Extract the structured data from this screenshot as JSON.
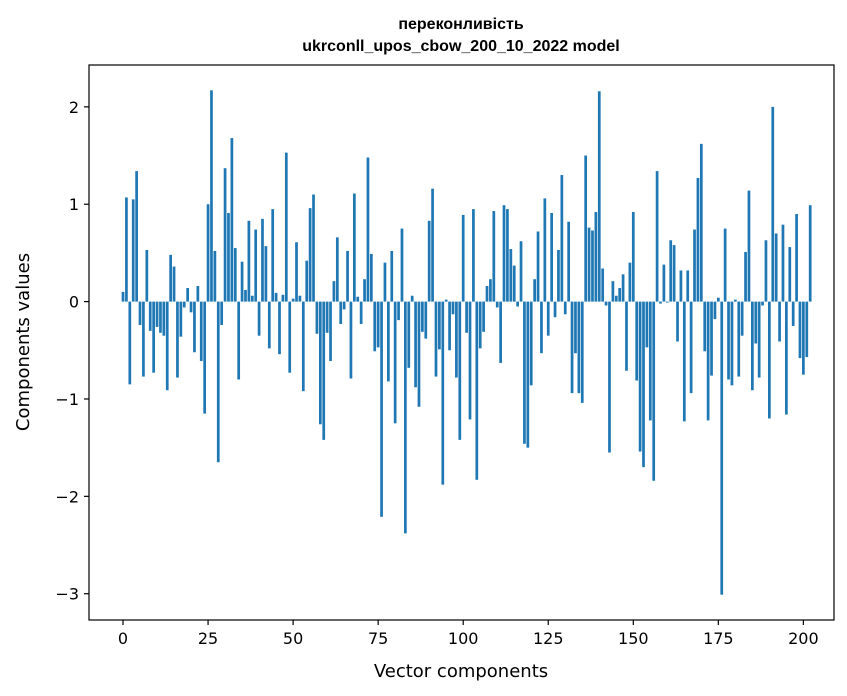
{
  "chart_data": {
    "type": "bar",
    "title": "переконливість",
    "subtitle": "ukrconll_upos_cbow_200_10_2022 model",
    "xlabel": "Vector components",
    "ylabel": "Components values",
    "xlim": [
      -10,
      209
    ],
    "ylim": [
      -3.27,
      2.43
    ],
    "xticks": [
      0,
      25,
      50,
      75,
      100,
      125,
      150,
      175,
      200
    ],
    "yticks": [
      -3,
      -2,
      -1,
      0,
      1,
      2
    ],
    "ytick_labels": [
      "−3",
      "−2",
      "−1",
      "0",
      "1",
      "2"
    ],
    "bar_color": "#1f77b4",
    "grid": false,
    "legend": "none",
    "values": [
      0.1,
      1.07,
      -0.85,
      1.05,
      1.34,
      -0.24,
      -0.77,
      0.53,
      -0.3,
      -0.73,
      -0.26,
      -0.32,
      -0.35,
      -0.91,
      0.48,
      0.36,
      -0.78,
      -0.36,
      -0.06,
      0.14,
      -0.11,
      -0.52,
      0.16,
      -0.61,
      -1.15,
      1.0,
      2.17,
      0.52,
      -1.65,
      -0.24,
      1.37,
      0.91,
      1.68,
      0.55,
      -0.8,
      0.41,
      0.12,
      0.83,
      0.06,
      0.74,
      -0.35,
      0.85,
      0.57,
      -0.48,
      0.95,
      0.09,
      -0.54,
      0.07,
      1.53,
      -0.73,
      0.03,
      0.61,
      0.06,
      -0.92,
      0.42,
      0.96,
      1.1,
      -0.33,
      -1.26,
      -1.42,
      -0.32,
      -0.61,
      0.21,
      0.66,
      -0.23,
      -0.08,
      0.52,
      -0.79,
      1.11,
      0.05,
      -0.23,
      0.23,
      1.48,
      0.49,
      -0.51,
      -0.47,
      -2.21,
      0.4,
      -0.82,
      0.52,
      -1.25,
      -0.19,
      0.75,
      -2.38,
      -0.68,
      0.06,
      -0.88,
      -1.08,
      -0.31,
      -0.38,
      0.83,
      1.16,
      -0.77,
      -0.49,
      -1.88,
      0.02,
      -0.5,
      -0.13,
      -0.78,
      -1.42,
      0.89,
      -0.32,
      -1.21,
      0.95,
      -1.83,
      -0.48,
      -0.31,
      0.16,
      0.23,
      0.93,
      -0.06,
      -0.63,
      0.99,
      0.95,
      0.54,
      0.37,
      -0.05,
      0.62,
      -1.46,
      -1.5,
      -0.86,
      0.23,
      0.72,
      -0.53,
      1.06,
      -0.35,
      0.91,
      -0.16,
      0.53,
      1.3,
      -0.13,
      0.82,
      -0.94,
      -0.53,
      -0.94,
      -1.04,
      1.5,
      0.76,
      0.73,
      0.92,
      2.16,
      0.34,
      -0.04,
      -1.55,
      0.21,
      0.06,
      0.14,
      0.28,
      -0.71,
      0.4,
      0.92,
      -0.81,
      -1.54,
      -1.7,
      -0.47,
      -1.22,
      -1.84,
      1.34,
      -0.02,
      0.38,
      -0.01,
      0.63,
      0.58,
      -0.41,
      0.32,
      -1.23,
      0.32,
      -0.94,
      0.74,
      1.27,
      1.62,
      -0.51,
      -1.22,
      -0.76,
      -0.18,
      0.04,
      -3.01,
      0.75,
      -0.8,
      -0.86,
      0.02,
      -0.77,
      -0.35,
      0.51,
      1.14,
      -0.91,
      -0.43,
      -0.78,
      -0.04,
      0.63,
      -1.2,
      2.0,
      0.7,
      -0.41,
      0.79,
      -1.16,
      0.56,
      -0.25,
      0.9,
      -0.58,
      -0.75,
      -0.57,
      0.99
    ]
  }
}
